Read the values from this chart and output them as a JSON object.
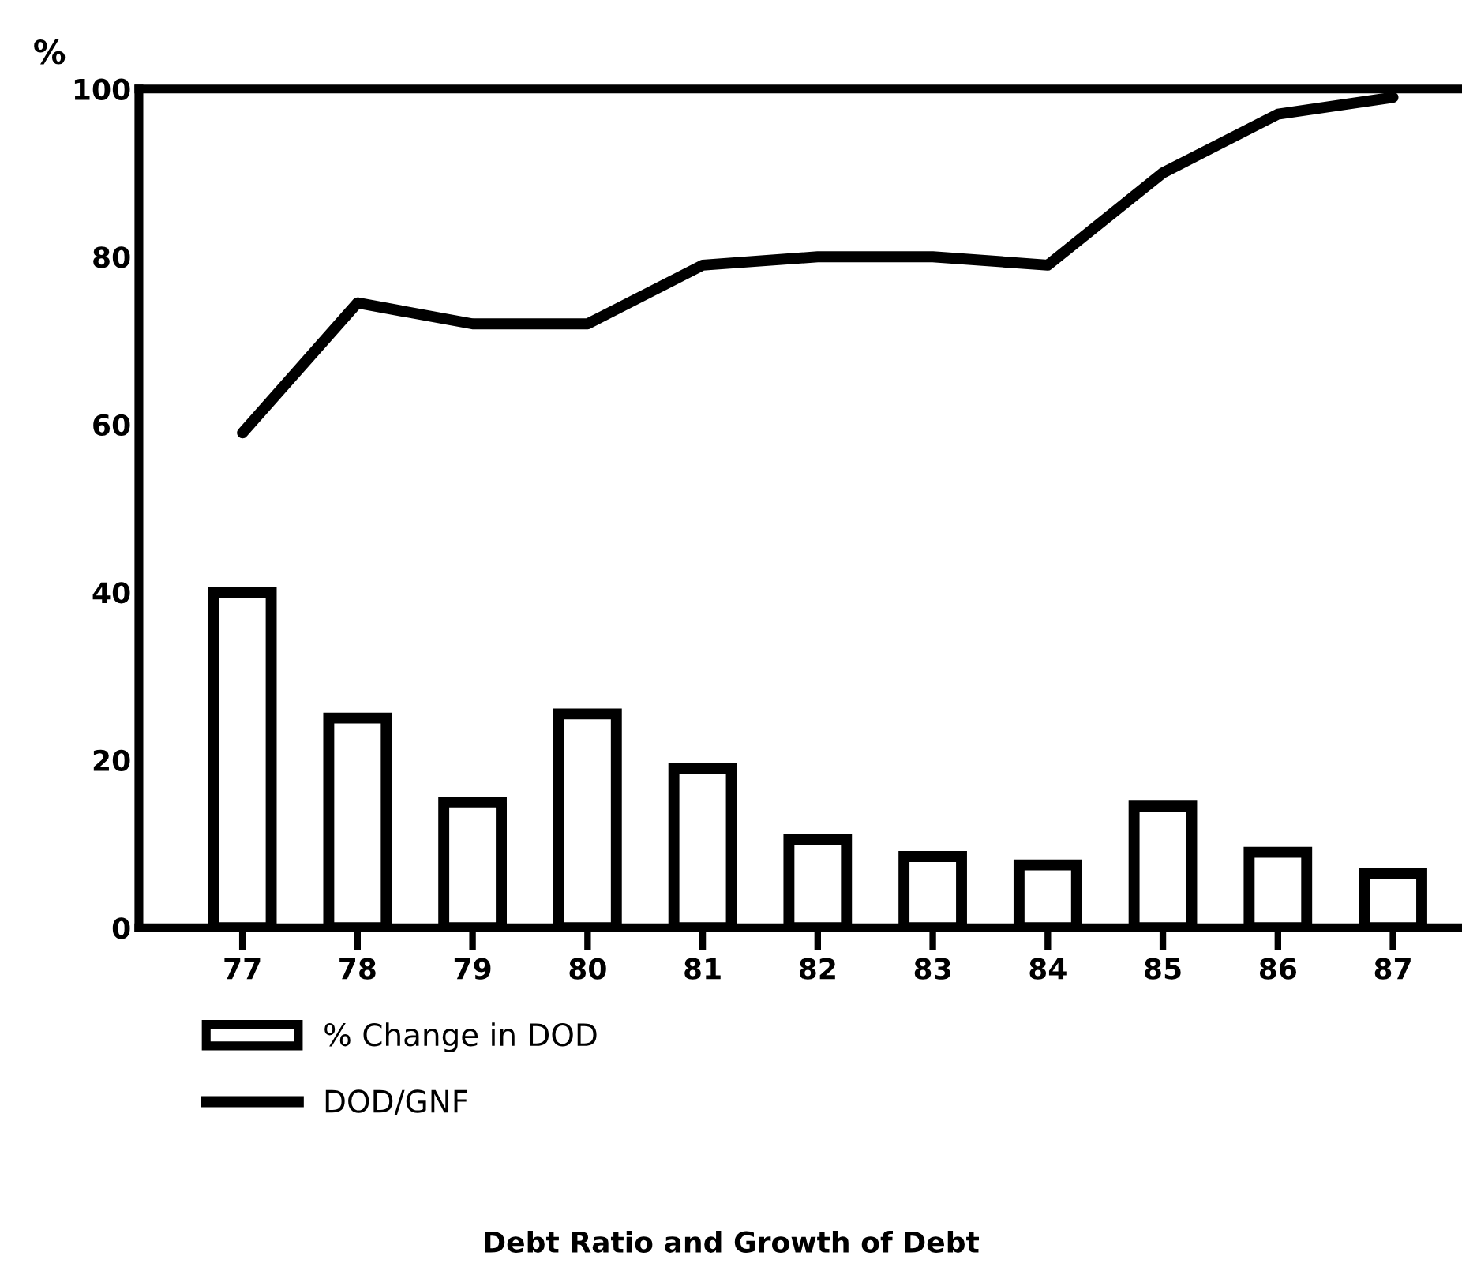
{
  "chart_data": {
    "type": "bar",
    "title": "Debt Ratio and Growth of Debt",
    "ylabel": "%",
    "categories": [
      "77",
      "78",
      "79",
      "80",
      "81",
      "82",
      "83",
      "84",
      "85",
      "86",
      "87"
    ],
    "series": [
      {
        "name": "% Change in DOD",
        "color": "#ffffff",
        "values": [
          40,
          25,
          15,
          25.5,
          19,
          10.5,
          8.5,
          7.5,
          14.5,
          9,
          6.5
        ]
      },
      {
        "name": "DOD/GNF",
        "type": "line",
        "color": "#000000",
        "values": [
          59,
          74.5,
          72,
          72,
          79,
          80,
          80,
          79,
          90,
          97,
          99
        ]
      }
    ],
    "ylim": [
      0,
      100
    ],
    "yticks": [
      0,
      20,
      40,
      60,
      80,
      100
    ],
    "legend": "bottom left",
    "grid": false
  }
}
